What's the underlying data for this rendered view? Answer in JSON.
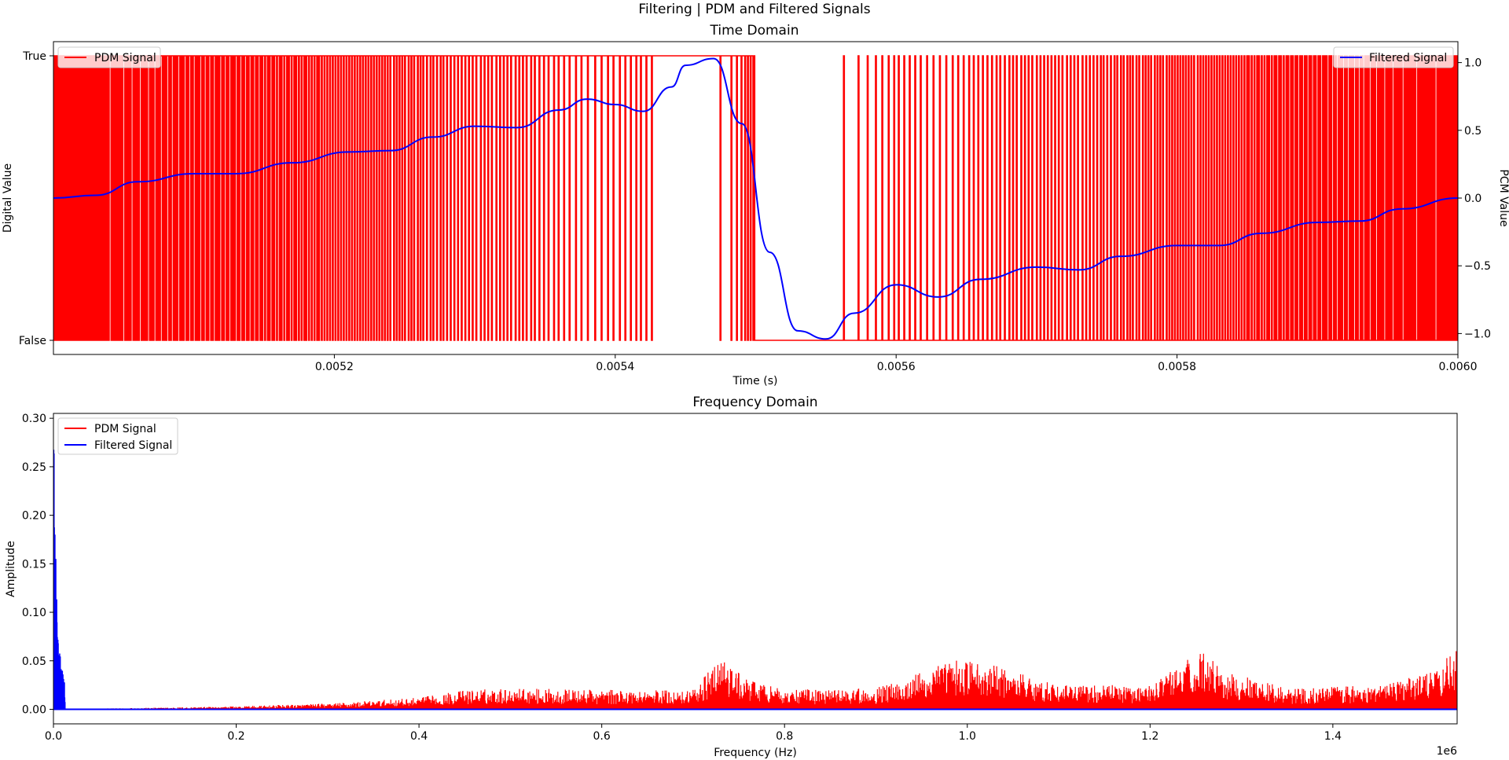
{
  "figure": {
    "suptitle": "Filtering | PDM and Filtered Signals"
  },
  "colors": {
    "pdm": "#ff0000",
    "filtered": "#0000ff",
    "axes": "#000000",
    "background": "#ffffff"
  },
  "chart_data": [
    {
      "type": "line",
      "title": "Time Domain",
      "xlabel": "Time (s)",
      "ylabel": "Digital Value",
      "ylabel_right": "PCM Value",
      "xlim": [
        0.005,
        0.006
      ],
      "x_ticks": [
        "0.0052",
        "0.0054",
        "0.0056",
        "0.0058",
        "0.0060"
      ],
      "x_tick_values": [
        0.0052,
        0.0054,
        0.0056,
        0.0058,
        0.006
      ],
      "y_ticks_left": [
        "True",
        "False"
      ],
      "y_tick_values_left": [
        1,
        0
      ],
      "y_ticks_right": [
        "1.0",
        "0.5",
        "0.0",
        "−0.5",
        "−1.0"
      ],
      "y_tick_values_right": [
        1.0,
        0.5,
        0.0,
        -0.5,
        -1.0
      ],
      "ylim_right": [
        -1.05,
        1.05
      ],
      "legend_left": {
        "placement": "top-left",
        "entries": [
          "PDM Signal"
        ]
      },
      "legend_right": {
        "placement": "top-right",
        "entries": [
          "Filtered Signal"
        ]
      },
      "series": [
        {
          "name": "PDM Signal",
          "kind": "pulse-density (digital True/False)",
          "solid_high_ranges": [
            [
              0.00543,
              0.00547
            ]
          ],
          "solid_low_ranges": [
            [
              0.0055,
              0.00553
            ],
            [
              0.005535,
              0.00556
            ]
          ]
        },
        {
          "name": "Filtered Signal",
          "x": [
            0.005,
            0.00503,
            0.00506,
            0.0051,
            0.00513,
            0.00517,
            0.00521,
            0.00524,
            0.00527,
            0.0053,
            0.00533,
            0.00536,
            0.00538,
            0.0054,
            0.00542,
            0.00544,
            0.00545,
            0.00547,
            0.00549,
            0.00551,
            0.00553,
            0.00555,
            0.00557,
            0.0056,
            0.00563,
            0.00566,
            0.0057,
            0.00573,
            0.00576,
            0.0058,
            0.00583,
            0.00586,
            0.0059,
            0.00593,
            0.00596,
            0.006
          ],
          "y": [
            0.0,
            0.02,
            0.12,
            0.18,
            0.18,
            0.26,
            0.34,
            0.35,
            0.45,
            0.53,
            0.52,
            0.65,
            0.73,
            0.69,
            0.64,
            0.82,
            0.98,
            1.03,
            0.55,
            -0.4,
            -0.98,
            -1.04,
            -0.85,
            -0.64,
            -0.73,
            -0.6,
            -0.51,
            -0.53,
            -0.43,
            -0.35,
            -0.35,
            -0.26,
            -0.18,
            -0.17,
            -0.08,
            0.0
          ]
        }
      ]
    },
    {
      "type": "line",
      "title": "Frequency Domain",
      "xlabel": "Frequency (Hz)",
      "ylabel": "Amplitude",
      "xlim": [
        0,
        1536000
      ],
      "ylim": [
        -0.015,
        0.305
      ],
      "x_offset_label": "1e6",
      "x_ticks": [
        "0.0",
        "0.2",
        "0.4",
        "0.6",
        "0.8",
        "1.0",
        "1.2",
        "1.4"
      ],
      "x_tick_values": [
        0,
        200000,
        400000,
        600000,
        800000,
        1000000,
        1200000,
        1400000
      ],
      "y_ticks": [
        "0.00",
        "0.05",
        "0.10",
        "0.15",
        "0.20",
        "0.25",
        "0.30"
      ],
      "y_tick_values": [
        0.0,
        0.05,
        0.1,
        0.15,
        0.2,
        0.25,
        0.3
      ],
      "legend": {
        "placement": "top-left",
        "entries": [
          "PDM Signal",
          "Filtered Signal"
        ]
      },
      "series": [
        {
          "name": "PDM Signal",
          "envelope_freq_hz": [
            0,
            200000,
            300000,
            400000,
            450000,
            500000,
            600000,
            700000,
            730000,
            760000,
            800000,
            900000,
            990000,
            1010000,
            1050000,
            1100000,
            1200000,
            1260000,
            1280000,
            1350000,
            1450000,
            1520000,
            1536000
          ],
          "envelope_peak": [
            0.0,
            0.003,
            0.006,
            0.012,
            0.02,
            0.022,
            0.02,
            0.02,
            0.053,
            0.03,
            0.02,
            0.022,
            0.053,
            0.05,
            0.04,
            0.025,
            0.025,
            0.063,
            0.04,
            0.022,
            0.025,
            0.045,
            0.072
          ]
        },
        {
          "name": "Filtered Signal",
          "freq_hz": [
            0,
            500,
            1000,
            2000,
            3000,
            4000,
            5000,
            6000,
            7000,
            8000,
            9000,
            10000,
            11000,
            12000,
            13000,
            20000,
            1536000
          ],
          "amplitude": [
            0.29,
            0.3,
            0.24,
            0.2,
            0.15,
            0.1,
            0.08,
            0.065,
            0.06,
            0.05,
            0.045,
            0.04,
            0.035,
            0.03,
            0.0,
            0.0,
            0.0
          ]
        }
      ]
    }
  ]
}
